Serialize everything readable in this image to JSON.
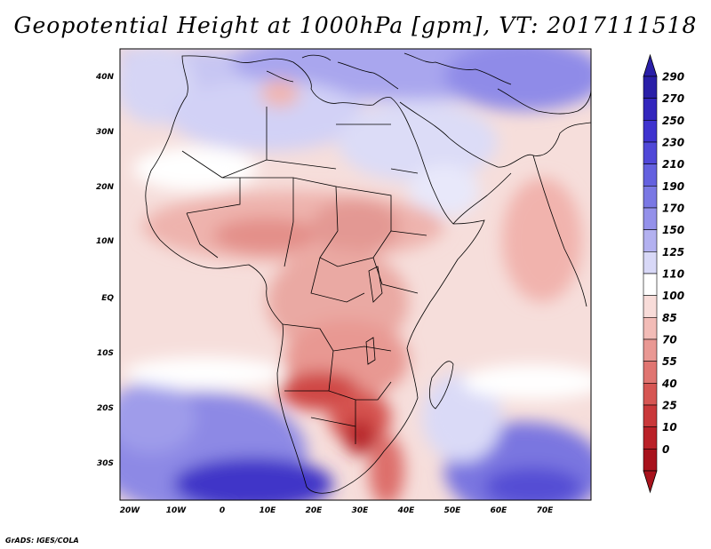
{
  "title": "Geopotential Height at 1000hPa [gpm], VT: 2017111518",
  "credit": "GrADS: IGES/COLA",
  "map": {
    "lat_labels": [
      "40N",
      "30N",
      "20N",
      "10N",
      "EQ",
      "10S",
      "20S",
      "30S"
    ],
    "lon_labels": [
      "20W",
      "10W",
      "0",
      "10E",
      "20E",
      "30E",
      "40E",
      "50E",
      "60E",
      "70E"
    ],
    "lon_range": [
      -22,
      80
    ],
    "lat_range": [
      -37,
      45
    ]
  },
  "colorbar": {
    "levels": [
      "290",
      "270",
      "250",
      "230",
      "210",
      "190",
      "170",
      "150",
      "125",
      "110",
      "100",
      "85",
      "70",
      "55",
      "40",
      "25",
      "10",
      "0"
    ],
    "colors": [
      "#2a1fa8",
      "#3326bd",
      "#3f33cf",
      "#5048d8",
      "#6461df",
      "#7a78e4",
      "#9491ea",
      "#b3b1f0",
      "#d8d8f7",
      "#ffffff",
      "#f8dcd9",
      "#f2bcb7",
      "#e99893",
      "#e07571",
      "#d65653",
      "#c9383a",
      "#ba2128",
      "#a8121c"
    ]
  },
  "colors": {
    "coast": "#000000",
    "background": "#ffffff"
  }
}
